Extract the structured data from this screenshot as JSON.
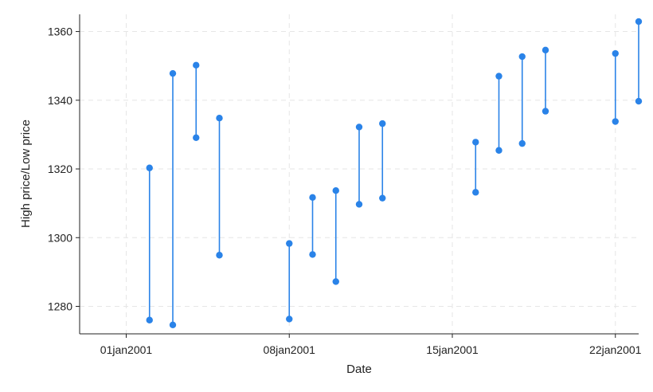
{
  "chart_data": {
    "type": "range-cap",
    "title": "",
    "xlabel": "Date",
    "ylabel": "High price/Low price",
    "x_tick_labels": [
      "01jan2001",
      "08jan2001",
      "15jan2001",
      "22jan2001"
    ],
    "y_tick_labels": [
      "1280",
      "1300",
      "1320",
      "1340",
      "1360"
    ],
    "y_ticks": [
      1280,
      1300,
      1320,
      1340,
      1360
    ],
    "ylim": [
      1272,
      1365
    ],
    "xlim": [
      "2000-12-30",
      "2001-01-23"
    ],
    "grid": true,
    "marker_color": "#2a83e8",
    "grid_color": "#e6e6e6",
    "series": [
      {
        "name": "High price",
        "values": [
          1320.3,
          1347.8,
          1350.2,
          1334.8,
          1298.3,
          1311.7,
          1313.7,
          1332.2,
          1333.2,
          1327.8,
          1347.0,
          1352.7,
          1354.6,
          1353.6,
          1362.9
        ]
      },
      {
        "name": "Low price",
        "values": [
          1276.0,
          1274.6,
          1329.1,
          1294.9,
          1276.3,
          1295.1,
          1287.2,
          1309.7,
          1311.5,
          1313.2,
          1325.4,
          1327.4,
          1336.8,
          1333.8,
          1339.7
        ]
      }
    ],
    "x": [
      "2001-01-02",
      "2001-01-03",
      "2001-01-04",
      "2001-01-05",
      "2001-01-08",
      "2001-01-09",
      "2001-01-10",
      "2001-01-11",
      "2001-01-12",
      "2001-01-16",
      "2001-01-17",
      "2001-01-18",
      "2001-01-19",
      "2001-01-22",
      "2001-01-23"
    ]
  }
}
